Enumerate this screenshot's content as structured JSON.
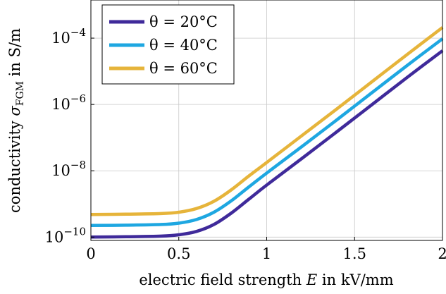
{
  "chart_data": {
    "type": "line",
    "title": "",
    "xlabel": "electric field strength E in kV/mm",
    "ylabel": "conductivity σ_FGM in S/m",
    "x_ticks": [
      "0",
      "0.5",
      "1",
      "1.5",
      "2"
    ],
    "y_ticks": [
      {
        "base": "10",
        "exp": "−10"
      },
      {
        "base": "10",
        "exp": "−8"
      },
      {
        "base": "10",
        "exp": "−6"
      },
      {
        "base": "10",
        "exp": "−4"
      }
    ],
    "xlim": [
      0,
      2
    ],
    "ylim_log10": [
      -10.1,
      -2.85
    ],
    "y_scale": "log",
    "grid": true,
    "legend_position": "top-left",
    "series": [
      {
        "name": "θ = 20°C",
        "color": "#3f2a9a",
        "x": [
          0,
          0.2,
          0.4,
          0.5,
          0.6,
          0.7,
          0.8,
          0.9,
          1.0,
          1.2,
          1.4,
          1.6,
          1.8,
          2.0
        ],
        "log10_y": [
          -10.0,
          -9.99,
          -9.97,
          -9.93,
          -9.83,
          -9.62,
          -9.27,
          -8.85,
          -8.43,
          -7.63,
          -6.82,
          -6.0,
          -5.18,
          -4.38
        ]
      },
      {
        "name": "θ = 40°C",
        "color": "#1ea7e1",
        "x": [
          0,
          0.2,
          0.4,
          0.5,
          0.6,
          0.7,
          0.8,
          0.9,
          1.0,
          1.2,
          1.4,
          1.6,
          1.8,
          2.0
        ],
        "log10_y": [
          -9.65,
          -9.64,
          -9.62,
          -9.58,
          -9.47,
          -9.25,
          -8.9,
          -8.48,
          -8.07,
          -7.27,
          -6.46,
          -5.64,
          -4.82,
          -4.02
        ]
      },
      {
        "name": "θ = 60°C",
        "color": "#e6b43a",
        "x": [
          0,
          0.2,
          0.4,
          0.5,
          0.6,
          0.7,
          0.8,
          0.9,
          1.0,
          1.2,
          1.4,
          1.6,
          1.8,
          2.0
        ],
        "log10_y": [
          -9.32,
          -9.31,
          -9.29,
          -9.25,
          -9.14,
          -8.92,
          -8.57,
          -8.15,
          -7.75,
          -6.94,
          -6.13,
          -5.31,
          -4.49,
          -3.68
        ]
      }
    ]
  }
}
